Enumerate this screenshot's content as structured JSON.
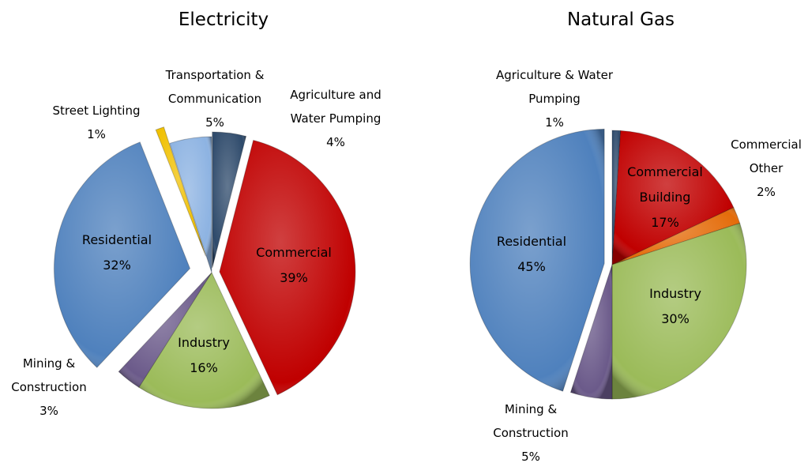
{
  "chart_data": [
    {
      "type": "pie",
      "title": "Electricity",
      "categories": [
        "Agriculture and Water Pumping",
        "Commercial",
        "Industry",
        "Mining & Construction",
        "Residential",
        "Street Lighting",
        "Transportation & Communication"
      ],
      "values": [
        4,
        39,
        16,
        3,
        32,
        1,
        5
      ],
      "value_labels": [
        "4%",
        "39%",
        "16%",
        "3%",
        "32%",
        "1%",
        "5%"
      ],
      "colors": [
        "#2e4a6b",
        "#c00000",
        "#9bbb59",
        "#6b5a8a",
        "#4f81bd",
        "#f0c000",
        "#8db3e2"
      ]
    },
    {
      "type": "pie",
      "title": "Natural Gas",
      "categories": [
        "Agriculture & Water Pumping",
        "Commercial Building",
        "Commercial Other",
        "Industry",
        "Mining & Construction",
        "Residential"
      ],
      "values": [
        1,
        17,
        2,
        30,
        5,
        45
      ],
      "value_labels": [
        "1%",
        "17%",
        "2%",
        "30%",
        "5%",
        "45%"
      ],
      "colors": [
        "#2e4a6b",
        "#c00000",
        "#e46c0a",
        "#9bbb59",
        "#6b5a8a",
        "#4f81bd"
      ]
    }
  ]
}
